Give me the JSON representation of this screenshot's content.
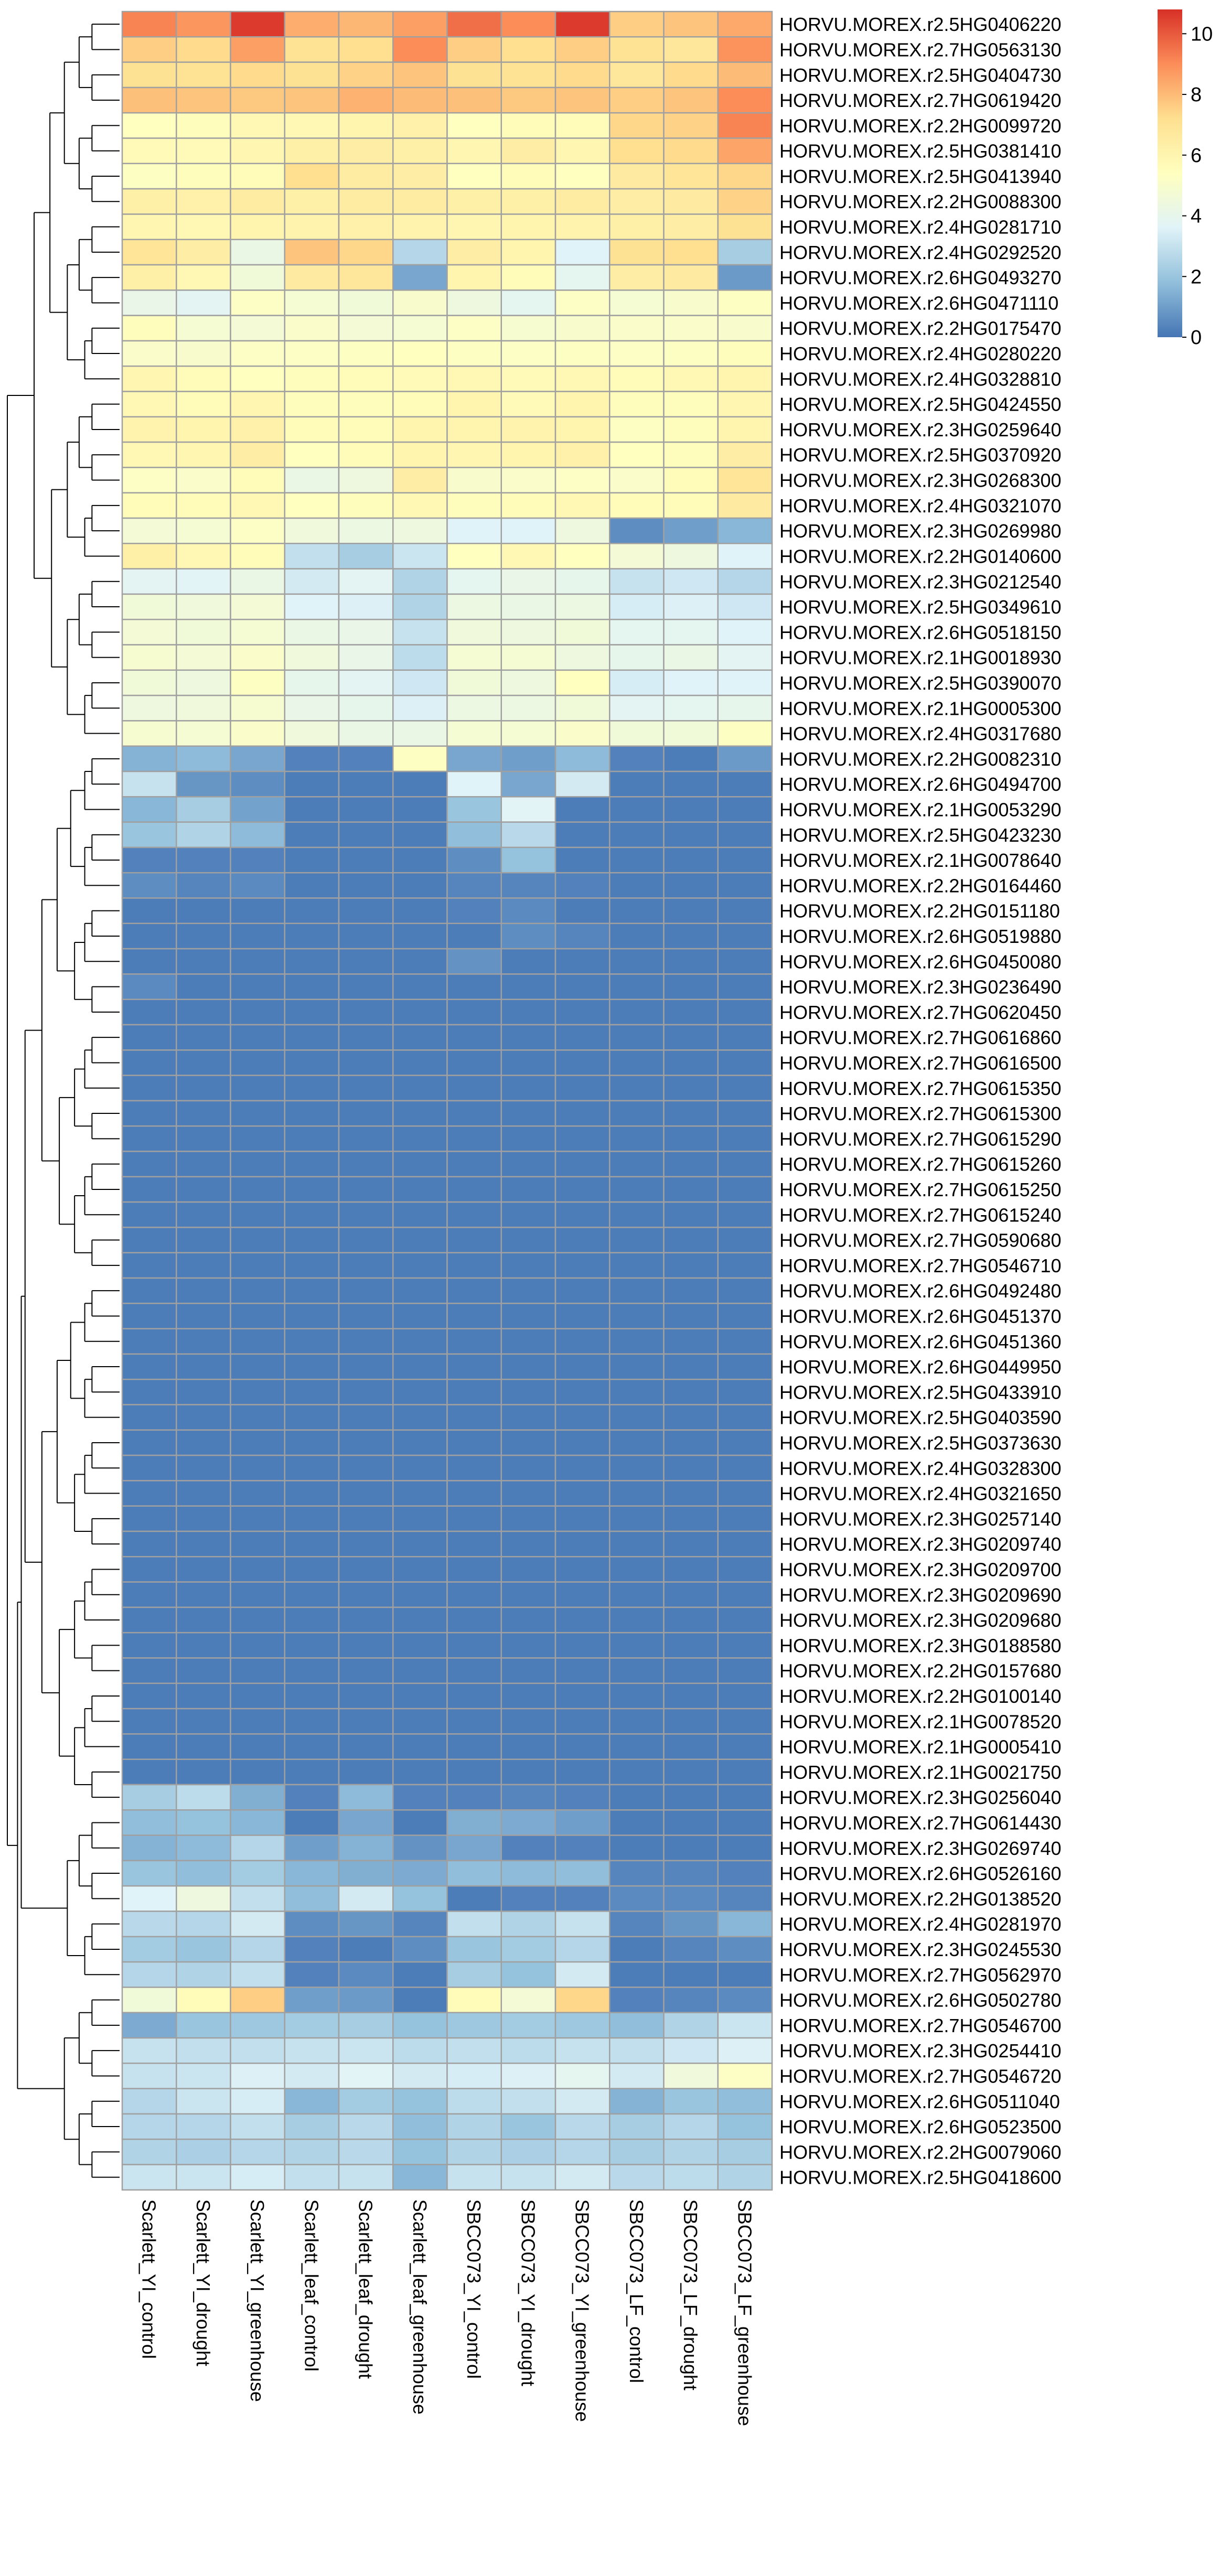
{
  "chart_data": {
    "type": "heatmap",
    "title": "",
    "xlabel": "",
    "ylabel": "",
    "columns": [
      "Scarlett_YI_control",
      "Scarlett_YI_drought",
      "Scarlett_YI_greenhouse",
      "Scarlett_leaf_control",
      "Scarlett_leaf_drought",
      "Scarlett_leaf_greenhouse",
      "SBCC073_YI_control",
      "SBCC073_YI_drought",
      "SBCC073_YI_greenhouse",
      "SBCC073_LF_control",
      "SBCC073_LF_drought",
      "SBCC073_LF_greenhouse"
    ],
    "rows": [
      "HORVU.MOREX.r2.5HG0406220",
      "HORVU.MOREX.r2.7HG0563130",
      "HORVU.MOREX.r2.5HG0404730",
      "HORVU.MOREX.r2.7HG0619420",
      "HORVU.MOREX.r2.2HG0099720",
      "HORVU.MOREX.r2.5HG0381410",
      "HORVU.MOREX.r2.5HG0413940",
      "HORVU.MOREX.r2.2HG0088300",
      "HORVU.MOREX.r2.4HG0281710",
      "HORVU.MOREX.r2.4HG0292520",
      "HORVU.MOREX.r2.6HG0493270",
      "HORVU.MOREX.r2.6HG0471110",
      "HORVU.MOREX.r2.2HG0175470",
      "HORVU.MOREX.r2.4HG0280220",
      "HORVU.MOREX.r2.4HG0328810",
      "HORVU.MOREX.r2.5HG0424550",
      "HORVU.MOREX.r2.3HG0259640",
      "HORVU.MOREX.r2.5HG0370920",
      "HORVU.MOREX.r2.3HG0268300",
      "HORVU.MOREX.r2.4HG0321070",
      "HORVU.MOREX.r2.3HG0269980",
      "HORVU.MOREX.r2.2HG0140600",
      "HORVU.MOREX.r2.3HG0212540",
      "HORVU.MOREX.r2.5HG0349610",
      "HORVU.MOREX.r2.6HG0518150",
      "HORVU.MOREX.r2.1HG0018930",
      "HORVU.MOREX.r2.5HG0390070",
      "HORVU.MOREX.r2.1HG0005300",
      "HORVU.MOREX.r2.4HG0317680",
      "HORVU.MOREX.r2.2HG0082310",
      "HORVU.MOREX.r2.6HG0494700",
      "HORVU.MOREX.r2.1HG0053290",
      "HORVU.MOREX.r2.5HG0423230",
      "HORVU.MOREX.r2.1HG0078640",
      "HORVU.MOREX.r2.2HG0164460",
      "HORVU.MOREX.r2.2HG0151180",
      "HORVU.MOREX.r2.6HG0519880",
      "HORVU.MOREX.r2.6HG0450080",
      "HORVU.MOREX.r2.3HG0236490",
      "HORVU.MOREX.r2.7HG0620450",
      "HORVU.MOREX.r2.7HG0616860",
      "HORVU.MOREX.r2.7HG0616500",
      "HORVU.MOREX.r2.7HG0615350",
      "HORVU.MOREX.r2.7HG0615300",
      "HORVU.MOREX.r2.7HG0615290",
      "HORVU.MOREX.r2.7HG0615260",
      "HORVU.MOREX.r2.7HG0615250",
      "HORVU.MOREX.r2.7HG0615240",
      "HORVU.MOREX.r2.7HG0590680",
      "HORVU.MOREX.r2.7HG0546710",
      "HORVU.MOREX.r2.6HG0492480",
      "HORVU.MOREX.r2.6HG0451370",
      "HORVU.MOREX.r2.6HG0451360",
      "HORVU.MOREX.r2.6HG0449950",
      "HORVU.MOREX.r2.5HG0433910",
      "HORVU.MOREX.r2.5HG0403590",
      "HORVU.MOREX.r2.5HG0373630",
      "HORVU.MOREX.r2.4HG0328300",
      "HORVU.MOREX.r2.4HG0321650",
      "HORVU.MOREX.r2.3HG0257140",
      "HORVU.MOREX.r2.3HG0209740",
      "HORVU.MOREX.r2.3HG0209700",
      "HORVU.MOREX.r2.3HG0209690",
      "HORVU.MOREX.r2.3HG0209680",
      "HORVU.MOREX.r2.3HG0188580",
      "HORVU.MOREX.r2.2HG0157680",
      "HORVU.MOREX.r2.2HG0100140",
      "HORVU.MOREX.r2.1HG0078520",
      "HORVU.MOREX.r2.1HG0005410",
      "HORVU.MOREX.r2.1HG0021750",
      "HORVU.MOREX.r2.3HG0256040",
      "HORVU.MOREX.r2.7HG0614430",
      "HORVU.MOREX.r2.3HG0269740",
      "HORVU.MOREX.r2.6HG0526160",
      "HORVU.MOREX.r2.2HG0138520",
      "HORVU.MOREX.r2.4HG0281970",
      "HORVU.MOREX.r2.3HG0245530",
      "HORVU.MOREX.r2.7HG0562970",
      "HORVU.MOREX.r2.6HG0502780",
      "HORVU.MOREX.r2.7HG0546700",
      "HORVU.MOREX.r2.3HG0254410",
      "HORVU.MOREX.r2.7HG0546720",
      "HORVU.MOREX.r2.6HG0511040",
      "HORVU.MOREX.r2.6HG0523500",
      "HORVU.MOREX.r2.2HG0079060",
      "HORVU.MOREX.r2.5HG0418600"
    ],
    "values": [
      [
        9.2,
        8.8,
        10.6,
        8.3,
        8.1,
        8.6,
        9.6,
        9.0,
        10.6,
        7.6,
        7.8,
        8.4
      ],
      [
        7.6,
        7.3,
        8.6,
        7.0,
        7.2,
        9.0,
        7.6,
        7.2,
        7.6,
        7.0,
        6.8,
        8.9
      ],
      [
        7.1,
        7.0,
        7.3,
        7.1,
        7.5,
        7.8,
        7.1,
        7.0,
        7.3,
        6.8,
        7.3,
        8.0
      ],
      [
        7.9,
        7.8,
        7.7,
        7.8,
        8.2,
        8.0,
        7.9,
        7.7,
        7.8,
        7.6,
        7.8,
        9.0
      ],
      [
        5.4,
        5.5,
        5.8,
        5.8,
        6.0,
        6.2,
        5.4,
        5.6,
        5.6,
        7.4,
        7.5,
        9.2
      ],
      [
        5.7,
        5.7,
        5.9,
        6.3,
        6.4,
        6.3,
        5.9,
        6.4,
        5.9,
        7.2,
        7.3,
        8.5
      ],
      [
        5.3,
        5.5,
        5.6,
        7.2,
        6.5,
        6.4,
        5.4,
        5.6,
        5.4,
        6.6,
        6.9,
        7.4
      ],
      [
        6.3,
        6.2,
        6.5,
        6.3,
        6.5,
        6.5,
        6.3,
        6.3,
        6.5,
        6.4,
        6.6,
        7.5
      ],
      [
        5.9,
        5.8,
        6.0,
        6.1,
        6.2,
        6.1,
        5.9,
        6.0,
        6.1,
        6.3,
        6.4,
        7.1
      ],
      [
        6.9,
        6.4,
        4.2,
        7.8,
        7.4,
        2.6,
        6.4,
        6.0,
        3.6,
        7.1,
        7.2,
        2.3
      ],
      [
        6.3,
        5.8,
        4.6,
        6.6,
        6.8,
        1.2,
        6.0,
        5.6,
        3.9,
        6.4,
        6.6,
        0.9
      ],
      [
        4.1,
        3.8,
        5.2,
        4.8,
        4.6,
        5.0,
        4.4,
        3.9,
        5.2,
        4.8,
        5.0,
        5.3
      ],
      [
        5.5,
        4.8,
        4.7,
        5.1,
        4.7,
        4.8,
        5.2,
        4.9,
        5.0,
        5.1,
        5.1,
        5.0
      ],
      [
        5.1,
        5.0,
        5.2,
        5.2,
        5.3,
        5.4,
        5.3,
        5.2,
        5.3,
        5.2,
        5.3,
        5.5
      ],
      [
        5.9,
        5.6,
        5.4,
        5.5,
        5.6,
        5.7,
        5.8,
        5.7,
        5.8,
        5.6,
        5.8,
        6.0
      ],
      [
        5.8,
        5.6,
        5.9,
        5.5,
        5.5,
        5.6,
        6.0,
        5.7,
        6.0,
        5.5,
        5.5,
        5.9
      ],
      [
        6.1,
        6.0,
        6.2,
        5.6,
        5.6,
        6.0,
        6.0,
        6.1,
        6.0,
        5.3,
        5.5,
        6.0
      ],
      [
        5.8,
        5.9,
        6.4,
        5.4,
        5.6,
        6.0,
        5.9,
        6.0,
        6.2,
        5.4,
        5.5,
        6.4
      ],
      [
        5.2,
        5.1,
        5.6,
        4.2,
        4.4,
        6.4,
        5.0,
        5.1,
        5.2,
        5.1,
        5.6,
        6.9
      ],
      [
        5.6,
        5.6,
        5.8,
        5.4,
        5.5,
        5.8,
        5.5,
        5.6,
        5.8,
        5.6,
        5.6,
        6.6
      ],
      [
        4.7,
        4.8,
        5.2,
        4.5,
        4.3,
        4.4,
        3.6,
        3.6,
        4.4,
        0.6,
        1.0,
        1.6
      ],
      [
        6.3,
        5.8,
        5.6,
        2.9,
        2.3,
        3.1,
        5.4,
        5.8,
        5.4,
        4.7,
        4.4,
        3.6
      ],
      [
        3.8,
        3.7,
        4.2,
        3.3,
        3.8,
        2.5,
        3.9,
        4.1,
        4.0,
        3.0,
        3.2,
        2.6
      ],
      [
        4.6,
        4.5,
        4.7,
        3.6,
        3.5,
        2.5,
        4.3,
        4.2,
        4.3,
        3.4,
        3.5,
        3.2
      ],
      [
        4.7,
        4.6,
        4.8,
        4.2,
        4.1,
        3.0,
        4.5,
        4.4,
        4.6,
        3.9,
        3.9,
        3.6
      ],
      [
        4.9,
        4.7,
        5.1,
        4.5,
        4.1,
        2.8,
        4.8,
        4.8,
        4.4,
        4.0,
        4.2,
        3.8
      ],
      [
        4.6,
        4.4,
        5.3,
        4.0,
        3.8,
        3.2,
        4.6,
        4.4,
        5.4,
        3.4,
        3.6,
        3.6
      ],
      [
        4.4,
        4.5,
        4.9,
        4.1,
        4.0,
        3.5,
        4.3,
        4.3,
        4.6,
        3.8,
        3.9,
        4.0
      ],
      [
        4.9,
        4.8,
        5.1,
        4.5,
        4.2,
        4.2,
        4.8,
        4.8,
        5.1,
        4.6,
        4.6,
        5.3
      ],
      [
        1.5,
        1.7,
        1.2,
        0.3,
        0.3,
        5.3,
        1.2,
        1.0,
        1.7,
        0.3,
        0.2,
        0.9
      ],
      [
        3.0,
        0.8,
        0.6,
        0.2,
        0.2,
        0.2,
        3.6,
        1.2,
        3.3,
        0.2,
        0.2,
        0.2
      ],
      [
        1.6,
        2.3,
        1.1,
        0.2,
        0.2,
        0.2,
        2.0,
        3.7,
        0.2,
        0.2,
        0.2,
        0.2
      ],
      [
        2.0,
        2.5,
        1.7,
        0.2,
        0.2,
        0.2,
        1.8,
        2.7,
        0.2,
        0.2,
        0.2,
        0.2
      ],
      [
        0.3,
        0.3,
        0.3,
        0.2,
        0.2,
        0.2,
        0.6,
        1.9,
        0.2,
        0.2,
        0.2,
        0.2
      ],
      [
        0.6,
        0.4,
        0.5,
        0.2,
        0.2,
        0.2,
        0.4,
        0.4,
        0.3,
        0.2,
        0.2,
        0.2
      ],
      [
        0.2,
        0.2,
        0.2,
        0.2,
        0.2,
        0.2,
        0.3,
        0.5,
        0.2,
        0.2,
        0.2,
        0.2
      ],
      [
        0.2,
        0.2,
        0.2,
        0.2,
        0.2,
        0.2,
        0.2,
        0.6,
        0.4,
        0.2,
        0.2,
        0.2
      ],
      [
        0.2,
        0.2,
        0.2,
        0.2,
        0.2,
        0.2,
        0.7,
        0.2,
        0.2,
        0.2,
        0.2,
        0.2
      ],
      [
        0.5,
        0.2,
        0.2,
        0.2,
        0.2,
        0.2,
        0.2,
        0.2,
        0.2,
        0.2,
        0.2,
        0.2
      ],
      [
        0.2,
        0.2,
        0.2,
        0.2,
        0.2,
        0.2,
        0.2,
        0.2,
        0.2,
        0.2,
        0.2,
        0.2
      ],
      [
        0.2,
        0.2,
        0.2,
        0.2,
        0.2,
        0.2,
        0.2,
        0.2,
        0.2,
        0.2,
        0.2,
        0.2
      ],
      [
        0.2,
        0.2,
        0.2,
        0.2,
        0.2,
        0.2,
        0.2,
        0.2,
        0.2,
        0.2,
        0.2,
        0.2
      ],
      [
        0.2,
        0.2,
        0.2,
        0.2,
        0.2,
        0.2,
        0.2,
        0.2,
        0.2,
        0.2,
        0.2,
        0.2
      ],
      [
        0.2,
        0.2,
        0.2,
        0.2,
        0.2,
        0.2,
        0.2,
        0.2,
        0.2,
        0.2,
        0.2,
        0.2
      ],
      [
        0.2,
        0.2,
        0.2,
        0.2,
        0.2,
        0.2,
        0.2,
        0.2,
        0.2,
        0.2,
        0.2,
        0.2
      ],
      [
        0.2,
        0.2,
        0.2,
        0.2,
        0.2,
        0.2,
        0.2,
        0.2,
        0.2,
        0.2,
        0.2,
        0.2
      ],
      [
        0.2,
        0.2,
        0.2,
        0.2,
        0.2,
        0.2,
        0.2,
        0.2,
        0.2,
        0.2,
        0.2,
        0.2
      ],
      [
        0.2,
        0.2,
        0.2,
        0.2,
        0.2,
        0.2,
        0.2,
        0.2,
        0.2,
        0.2,
        0.2,
        0.2
      ],
      [
        0.2,
        0.2,
        0.2,
        0.2,
        0.2,
        0.2,
        0.2,
        0.2,
        0.2,
        0.2,
        0.2,
        0.2
      ],
      [
        0.2,
        0.2,
        0.2,
        0.2,
        0.2,
        0.2,
        0.2,
        0.2,
        0.2,
        0.2,
        0.2,
        0.2
      ],
      [
        0.2,
        0.2,
        0.2,
        0.2,
        0.2,
        0.2,
        0.2,
        0.2,
        0.2,
        0.2,
        0.2,
        0.2
      ],
      [
        0.2,
        0.2,
        0.2,
        0.2,
        0.2,
        0.2,
        0.2,
        0.2,
        0.2,
        0.2,
        0.2,
        0.2
      ],
      [
        0.2,
        0.2,
        0.2,
        0.2,
        0.2,
        0.2,
        0.2,
        0.2,
        0.2,
        0.2,
        0.2,
        0.2
      ],
      [
        0.2,
        0.2,
        0.2,
        0.2,
        0.2,
        0.2,
        0.2,
        0.2,
        0.2,
        0.2,
        0.2,
        0.2
      ],
      [
        0.2,
        0.2,
        0.2,
        0.2,
        0.2,
        0.2,
        0.2,
        0.2,
        0.2,
        0.2,
        0.2,
        0.2
      ],
      [
        0.2,
        0.2,
        0.2,
        0.2,
        0.2,
        0.2,
        0.2,
        0.2,
        0.2,
        0.2,
        0.2,
        0.2
      ],
      [
        0.2,
        0.2,
        0.2,
        0.2,
        0.2,
        0.2,
        0.2,
        0.2,
        0.2,
        0.2,
        0.2,
        0.2
      ],
      [
        0.2,
        0.2,
        0.2,
        0.2,
        0.2,
        0.2,
        0.2,
        0.2,
        0.2,
        0.2,
        0.2,
        0.2
      ],
      [
        0.2,
        0.2,
        0.2,
        0.2,
        0.2,
        0.2,
        0.2,
        0.2,
        0.2,
        0.2,
        0.2,
        0.2
      ],
      [
        0.2,
        0.2,
        0.2,
        0.2,
        0.2,
        0.2,
        0.2,
        0.2,
        0.2,
        0.2,
        0.2,
        0.2
      ],
      [
        0.2,
        0.2,
        0.2,
        0.2,
        0.2,
        0.2,
        0.2,
        0.2,
        0.2,
        0.2,
        0.2,
        0.2
      ],
      [
        0.2,
        0.2,
        0.2,
        0.2,
        0.2,
        0.2,
        0.2,
        0.2,
        0.2,
        0.2,
        0.2,
        0.2
      ],
      [
        0.2,
        0.2,
        0.2,
        0.2,
        0.2,
        0.2,
        0.2,
        0.2,
        0.2,
        0.2,
        0.2,
        0.2
      ],
      [
        0.2,
        0.2,
        0.2,
        0.2,
        0.2,
        0.2,
        0.2,
        0.2,
        0.2,
        0.2,
        0.2,
        0.2
      ],
      [
        0.2,
        0.2,
        0.2,
        0.2,
        0.2,
        0.2,
        0.2,
        0.2,
        0.2,
        0.2,
        0.2,
        0.2
      ],
      [
        0.2,
        0.2,
        0.2,
        0.2,
        0.2,
        0.2,
        0.2,
        0.2,
        0.2,
        0.2,
        0.2,
        0.2
      ],
      [
        0.2,
        0.2,
        0.2,
        0.2,
        0.2,
        0.2,
        0.2,
        0.2,
        0.2,
        0.2,
        0.2,
        0.2
      ],
      [
        0.2,
        0.2,
        0.2,
        0.2,
        0.2,
        0.2,
        0.2,
        0.2,
        0.2,
        0.2,
        0.2,
        0.2
      ],
      [
        0.2,
        0.2,
        0.2,
        0.2,
        0.2,
        0.2,
        0.2,
        0.2,
        0.2,
        0.2,
        0.2,
        0.2
      ],
      [
        0.2,
        0.2,
        0.2,
        0.2,
        0.2,
        0.2,
        0.2,
        0.2,
        0.2,
        0.2,
        0.2,
        0.2
      ],
      [
        2.3,
        2.8,
        1.4,
        0.3,
        1.7,
        0.3,
        0.3,
        0.4,
        0.3,
        0.2,
        0.2,
        0.2
      ],
      [
        1.8,
        1.9,
        1.6,
        0.2,
        1.2,
        0.2,
        1.4,
        1.3,
        1.0,
        0.2,
        0.2,
        0.2
      ],
      [
        1.5,
        1.7,
        2.6,
        1.0,
        1.5,
        0.7,
        1.2,
        0.3,
        0.3,
        0.2,
        0.2,
        0.2
      ],
      [
        2.0,
        1.8,
        2.2,
        1.6,
        1.4,
        1.3,
        1.8,
        1.7,
        1.8,
        0.4,
        0.4,
        0.3
      ],
      [
        3.6,
        4.4,
        2.9,
        1.8,
        3.3,
        1.9,
        0.2,
        0.3,
        0.3,
        0.5,
        0.5,
        0.4
      ],
      [
        2.7,
        2.6,
        3.3,
        0.6,
        0.8,
        0.4,
        2.9,
        2.5,
        3.0,
        0.4,
        0.8,
        1.6
      ],
      [
        2.2,
        2.0,
        2.6,
        0.3,
        0.2,
        0.6,
        2.0,
        2.2,
        2.6,
        0.2,
        0.4,
        0.6
      ],
      [
        2.6,
        2.5,
        2.9,
        0.3,
        0.5,
        0.2,
        2.3,
        1.9,
        3.3,
        0.2,
        0.2,
        0.2
      ],
      [
        4.6,
        5.6,
        7.6,
        1.0,
        0.9,
        0.2,
        5.6,
        4.7,
        7.4,
        0.3,
        0.4,
        0.5
      ],
      [
        1.3,
        2.0,
        2.1,
        2.2,
        2.3,
        1.9,
        2.1,
        2.2,
        2.1,
        1.8,
        2.5,
        3.1
      ],
      [
        3.0,
        2.9,
        2.9,
        3.0,
        3.1,
        2.8,
        2.9,
        2.8,
        3.0,
        2.9,
        3.2,
        3.5
      ],
      [
        3.0,
        3.1,
        3.5,
        3.3,
        3.7,
        3.3,
        3.4,
        3.5,
        3.9,
        3.3,
        4.5,
        5.2
      ],
      [
        2.6,
        3.1,
        3.4,
        1.6,
        2.2,
        1.9,
        2.8,
        2.9,
        3.3,
        1.5,
        2.0,
        1.8
      ],
      [
        2.6,
        2.6,
        2.9,
        2.3,
        2.7,
        1.8,
        2.5,
        2.0,
        2.7,
        2.3,
        2.6,
        1.9
      ],
      [
        2.5,
        2.4,
        2.6,
        2.5,
        2.7,
        1.9,
        2.5,
        2.4,
        2.6,
        2.3,
        2.5,
        2.3
      ],
      [
        3.1,
        3.1,
        3.4,
        2.9,
        3.0,
        1.6,
        3.0,
        3.0,
        3.3,
        2.7,
        2.8,
        2.5
      ]
    ],
    "colorscale": [
      "#4575b4",
      "#91bfdb",
      "#e0f3f8",
      "#ffffbf",
      "#fee090",
      "#fc8d59",
      "#d73027"
    ],
    "vrange": [
      0,
      10.8
    ],
    "legend": {
      "position": "top-right",
      "ticks": [
        "10",
        "8",
        "6",
        "4",
        "2",
        "0"
      ],
      "tick_values": [
        10,
        8,
        6,
        4,
        2,
        0
      ]
    },
    "cell_border_color": "#a0a0a0",
    "dendrogram": {
      "position": "left",
      "groups": [
        [
          0,
          28
        ],
        [
          29,
          70
        ],
        [
          71,
          77
        ],
        [
          78,
          85
        ]
      ]
    }
  }
}
